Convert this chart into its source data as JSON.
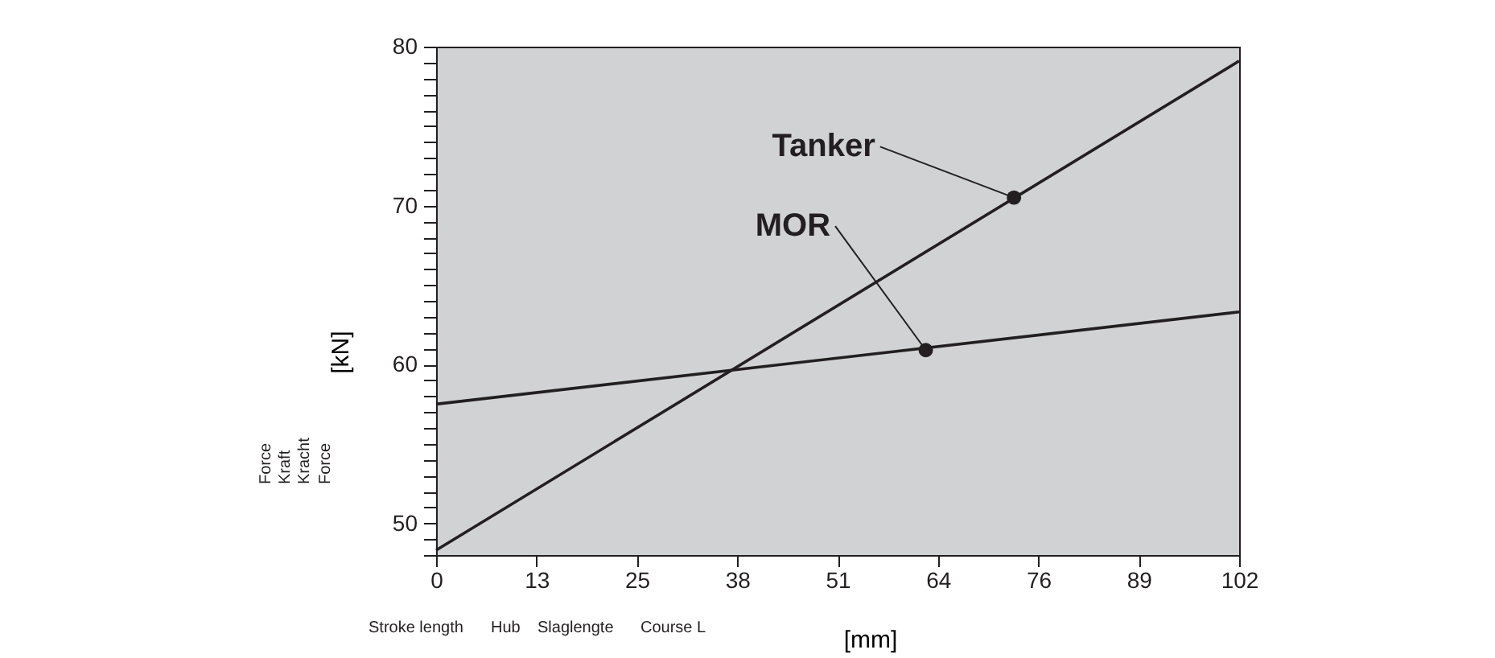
{
  "chart_data": {
    "type": "line",
    "xlabel": "[mm]",
    "ylabel": "[kN]",
    "x": [
      0,
      102
    ],
    "series": [
      {
        "color": "#231f20",
        "values": [
          48.3,
          79.1
        ]
      },
      {
        "color": "#231f20",
        "values": [
          57.5,
          63.3
        ]
      }
    ],
    "xlim": [
      0,
      102
    ],
    "ylim": [
      48,
      80
    ],
    "xticks": [
      0,
      {
        "value": 12.75,
        "label": "13"
      },
      {
        "value": 25.5,
        "label": "25"
      },
      {
        "value": 38.25,
        "label": "38"
      },
      51,
      {
        "value": 63.75,
        "label": "64"
      },
      {
        "value": 76.5,
        "label": "76"
      },
      {
        "value": 89.25,
        "label": "89"
      },
      102
    ],
    "yticks": [
      {
        "value": 48,
        "label": null
      },
      {
        "value": 49,
        "label": null
      },
      50,
      {
        "value": 51,
        "label": null
      },
      {
        "value": 52,
        "label": null
      },
      {
        "value": 53,
        "label": null
      },
      {
        "value": 54,
        "label": null
      },
      {
        "value": 55,
        "label": null
      },
      {
        "value": 56,
        "label": null
      },
      {
        "value": 57,
        "label": null
      },
      {
        "value": 58,
        "label": null
      },
      {
        "value": 59,
        "label": null
      },
      60,
      {
        "value": 61,
        "label": null
      },
      {
        "value": 62,
        "label": null
      },
      {
        "value": 63,
        "label": null
      },
      {
        "value": 64,
        "label": null
      },
      {
        "value": 65,
        "label": null
      },
      {
        "value": 66,
        "label": null
      },
      {
        "value": 67,
        "label": null
      },
      {
        "value": 68,
        "label": null
      },
      {
        "value": 69,
        "label": null
      },
      70,
      {
        "value": 71,
        "label": null
      },
      {
        "value": 72,
        "label": null
      },
      {
        "value": 73,
        "label": null
      },
      {
        "value": 74,
        "label": null
      },
      {
        "value": 75,
        "label": null
      },
      {
        "value": 76,
        "label": null
      },
      {
        "value": 77,
        "label": null
      },
      {
        "value": 78,
        "label": null
      },
      {
        "value": 79,
        "label": null
      },
      80
    ],
    "grid": false,
    "legend": false,
    "marker": "none",
    "line_style": "solid",
    "annotations": [
      {
        "text": "Tanker",
        "x": 73.4,
        "y": 70.5
      },
      {
        "text": "MOR",
        "x": 62.2,
        "y": 60.9
      },
      "Force",
      "Kraft",
      "Kracht",
      "Force",
      "Stroke length",
      "Hub",
      "Slaglengte",
      "Course  L"
    ]
  }
}
